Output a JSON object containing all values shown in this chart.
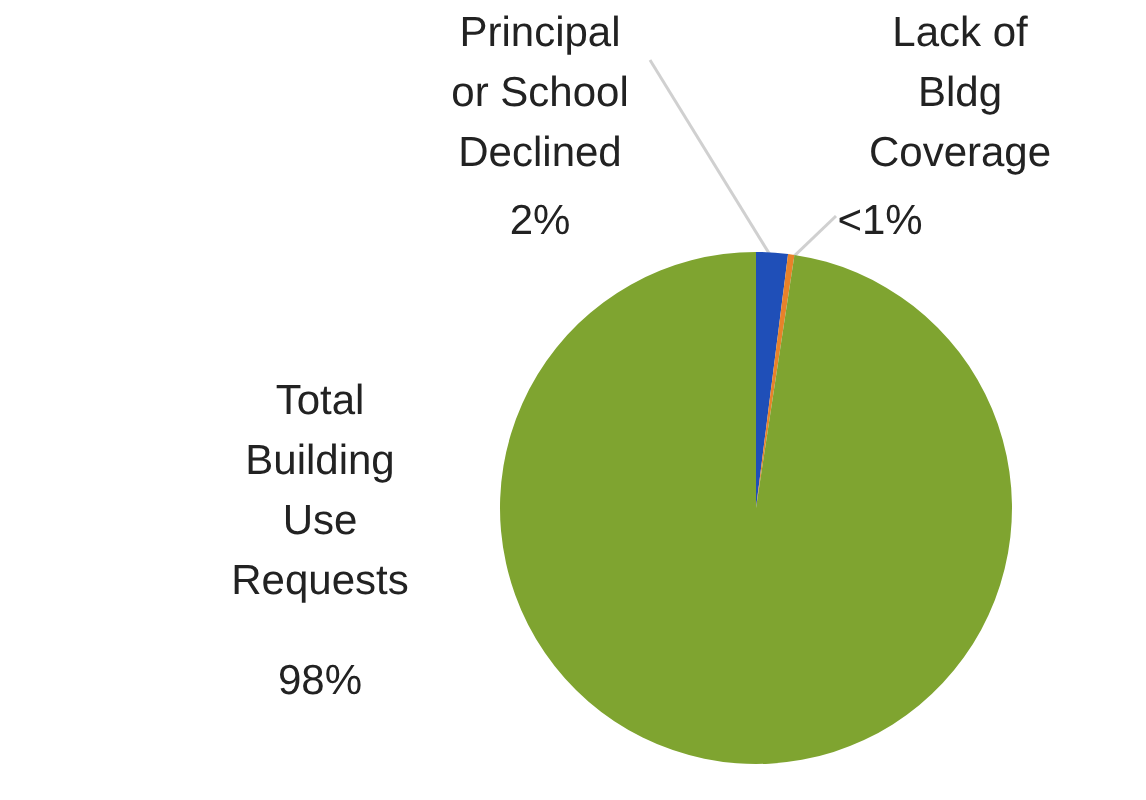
{
  "chart_data": {
    "type": "pie",
    "categories": [
      "Principal or School Declined",
      "Lack of Bldg Coverage",
      "Total Building Use Requests"
    ],
    "values": [
      2,
      0.4,
      97.6
    ],
    "colors": [
      "#1f4fb8",
      "#e8822a",
      "#7fa430"
    ],
    "value_labels": [
      "2%",
      "<1%",
      "98%"
    ]
  }
}
